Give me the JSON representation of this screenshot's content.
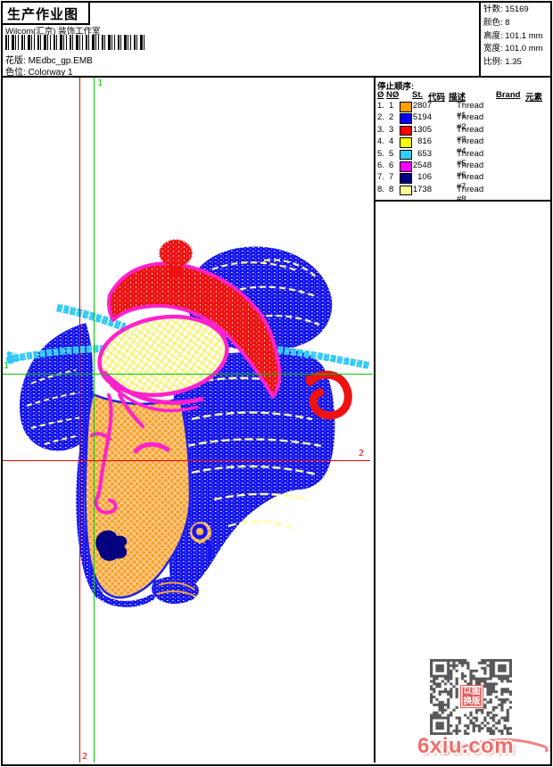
{
  "header": {
    "title": "生产作业图",
    "studio": "Wilcom(汇京) 装饰工作室",
    "pattern_label": "花版:",
    "pattern_value": "MEdbc_gp.EMB",
    "colorway_label": "色位:",
    "colorway_value": "Colorway 1"
  },
  "info": {
    "stitches_label": "针数:",
    "stitches_value": "15169",
    "colors_label": "颜色:",
    "colors_value": "8",
    "height_label": "高度:",
    "height_value": "101.1 mm",
    "width_label": "宽度:",
    "width_value": "101.0 mm",
    "scale_label": "比例:",
    "scale_value": "1.35"
  },
  "stop_sequence": {
    "title": "停止顺序:",
    "columns": [
      "Ø",
      "NØ",
      "St.",
      "代码",
      "描述",
      "Brand",
      "元素"
    ],
    "rows": [
      {
        "seq": "1.",
        "needle": "1",
        "color": "#FFA000",
        "st": "2807",
        "desc": "Thread #1"
      },
      {
        "seq": "2.",
        "needle": "2",
        "color": "#0000FF",
        "st": "5194",
        "desc": "Thread #2"
      },
      {
        "seq": "3.",
        "needle": "3",
        "color": "#FF0000",
        "st": "1305",
        "desc": "Thread #3"
      },
      {
        "seq": "4.",
        "needle": "4",
        "color": "#FFFF00",
        "st": "816",
        "desc": "Thread #4"
      },
      {
        "seq": "5.",
        "needle": "5",
        "color": "#33CCFF",
        "st": "653",
        "desc": "Thread #5"
      },
      {
        "seq": "6.",
        "needle": "6",
        "color": "#FF00FF",
        "st": "2548",
        "desc": "Thread #6"
      },
      {
        "seq": "7.",
        "needle": "7",
        "color": "#000080",
        "st": "106",
        "desc": "Thread #7"
      },
      {
        "seq": "8.",
        "needle": "8",
        "color": "#FFFF99",
        "st": "1738",
        "desc": "Thread #8"
      }
    ]
  },
  "guides": {
    "green_vertical_label": "1",
    "green_horizontal_label": "1",
    "red_horizontal_label": "2",
    "red_vertical_label": "2"
  },
  "watermark": {
    "text": "6xiu.com",
    "stamp": "以图换版"
  },
  "palette": {
    "hair_blue": "#1414F0",
    "face_orange": "#F9A233",
    "hat_red": "#EE1212",
    "outline_magenta": "#FF22CC",
    "hairpin_cyan": "#2FC9FB",
    "lips_navy": "#000080",
    "streak_cream": "#FFFB9E",
    "guide_green": "#00C800",
    "guide_red": "#F00000"
  }
}
